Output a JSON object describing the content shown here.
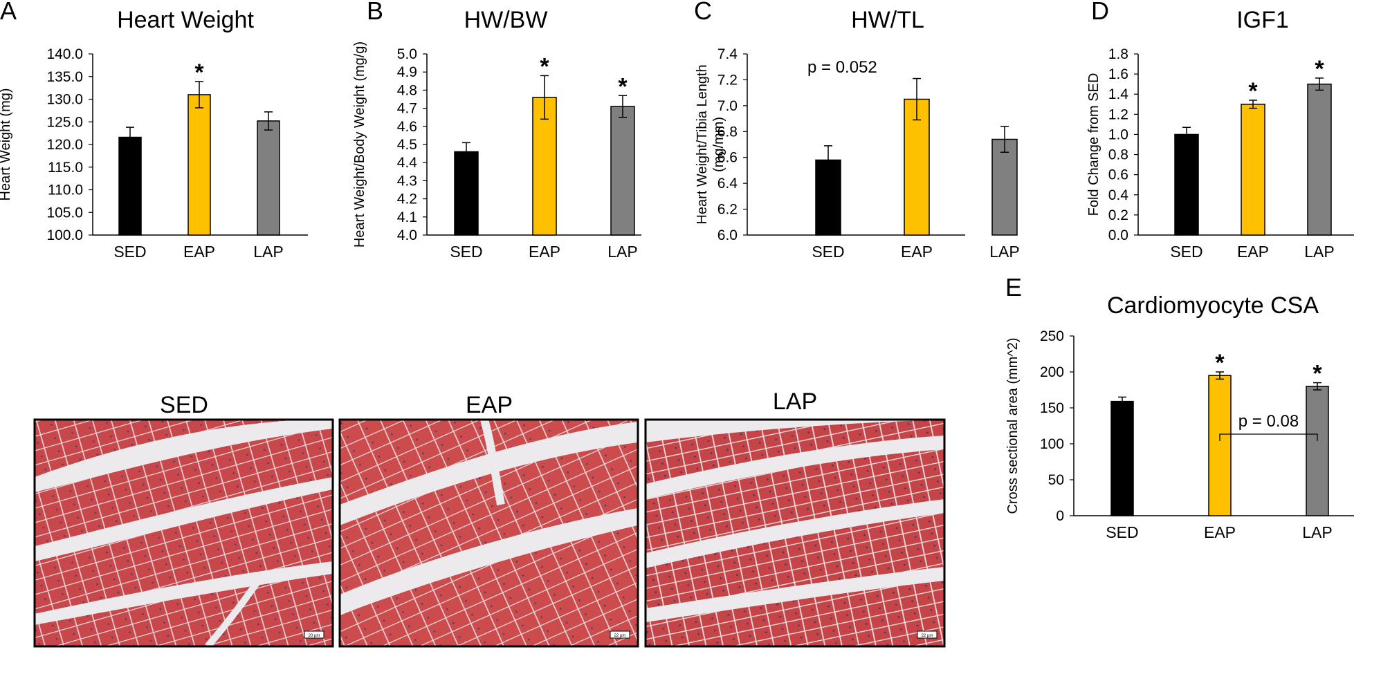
{
  "figure": {
    "histology": {
      "panels": [
        {
          "label": "SED",
          "scale": "20 µm"
        },
        {
          "label": "EAP",
          "scale": "22 µm"
        },
        {
          "label": "LAP",
          "scale": "22 µm"
        }
      ]
    }
  },
  "chart_data": [
    {
      "panel": "A",
      "type": "bar",
      "title": "Heart Weight",
      "ylabel": "Heart Weight (mg)",
      "xlabel": "",
      "categories": [
        "SED",
        "EAP",
        "LAP"
      ],
      "values": [
        121.6,
        131.0,
        125.2
      ],
      "errors": [
        2.2,
        2.9,
        2.0
      ],
      "significance": [
        "",
        "*",
        ""
      ],
      "colors": [
        "#000000",
        "#FFC000",
        "#808080"
      ],
      "ylim": [
        100,
        140
      ],
      "yticks": [
        "100.0",
        "105.0",
        "110.0",
        "115.0",
        "120.0",
        "125.0",
        "130.0",
        "135.0",
        "140.0"
      ],
      "annotations": []
    },
    {
      "panel": "B",
      "type": "bar",
      "title": "HW/BW",
      "ylabel": "Heart Weight/Body Weight (mg/g)",
      "xlabel": "",
      "categories": [
        "SED",
        "EAP",
        "LAP"
      ],
      "values": [
        4.46,
        4.76,
        4.71
      ],
      "errors": [
        0.05,
        0.12,
        0.06
      ],
      "significance": [
        "",
        "*",
        "*"
      ],
      "colors": [
        "#000000",
        "#FFC000",
        "#808080"
      ],
      "ylim": [
        4.0,
        5.0
      ],
      "yticks": [
        "4.0",
        "4.1",
        "4.2",
        "4.3",
        "4.4",
        "4.5",
        "4.6",
        "4.7",
        "4.8",
        "4.9",
        "5.0"
      ],
      "annotations": []
    },
    {
      "panel": "C",
      "type": "bar",
      "title": "HW/TL",
      "ylabel": "Heart Weight/Tibia Length (mg/mm)",
      "xlabel": "",
      "categories": [
        "SED",
        "EAP",
        "LAP"
      ],
      "values": [
        6.58,
        7.05,
        6.74
      ],
      "errors": [
        0.11,
        0.16,
        0.1
      ],
      "significance": [
        "",
        "",
        ""
      ],
      "colors": [
        "#000000",
        "#FFC000",
        "#808080"
      ],
      "ylim": [
        6.0,
        7.4
      ],
      "yticks": [
        "6.0",
        "6.2",
        "6.4",
        "6.6",
        "6.8",
        "7.0",
        "7.2",
        "7.4"
      ],
      "annotations": [
        "p = 0.052"
      ]
    },
    {
      "panel": "D",
      "type": "bar",
      "title": "IGF1",
      "ylabel": "Fold Change from SED",
      "xlabel": "",
      "categories": [
        "SED",
        "EAP",
        "LAP"
      ],
      "values": [
        1.0,
        1.3,
        1.5
      ],
      "errors": [
        0.07,
        0.04,
        0.06
      ],
      "significance": [
        "",
        "*",
        "*"
      ],
      "colors": [
        "#000000",
        "#FFC000",
        "#808080"
      ],
      "ylim": [
        0.0,
        1.8
      ],
      "yticks": [
        "0.0",
        "0.2",
        "0.4",
        "0.6",
        "0.8",
        "1.0",
        "1.2",
        "1.4",
        "1.6",
        "1.8"
      ],
      "annotations": []
    },
    {
      "panel": "E",
      "type": "bar",
      "title": "Cardiomyocyte CSA",
      "ylabel": "Cross sectional area (mm^2)",
      "xlabel": "",
      "categories": [
        "SED",
        "EAP",
        "LAP"
      ],
      "values": [
        159,
        195,
        180
      ],
      "errors": [
        6,
        5,
        5
      ],
      "significance": [
        "",
        "*",
        "*"
      ],
      "colors": [
        "#000000",
        "#FFC000",
        "#808080"
      ],
      "ylim": [
        0,
        250
      ],
      "yticks": [
        "0",
        "50",
        "100",
        "150",
        "200",
        "250"
      ],
      "annotations": [
        "p = 0.08"
      ]
    }
  ]
}
